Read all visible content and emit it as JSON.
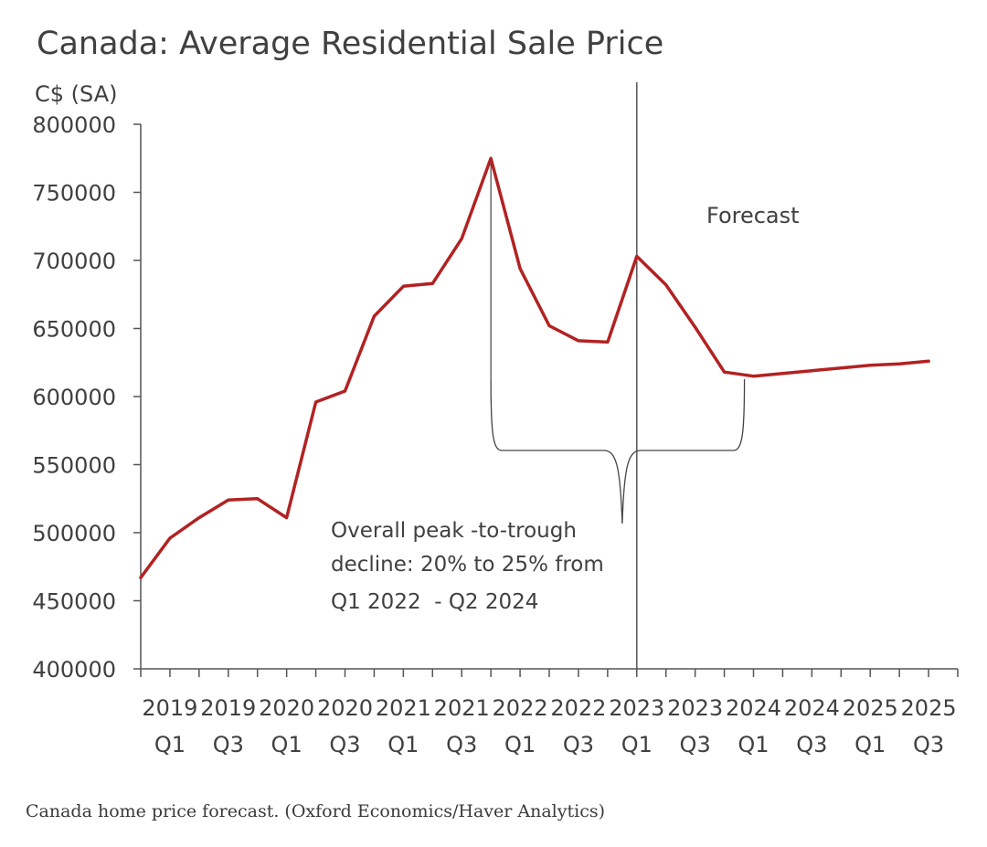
{
  "chart_data": {
    "type": "line",
    "title": "Canada: Average Residential Sale Price",
    "ylabel": "C$ (SA)",
    "xlabel": "",
    "ylim": [
      400000,
      800000
    ],
    "yticks": [
      400000,
      450000,
      500000,
      550000,
      600000,
      650000,
      700000,
      750000,
      800000
    ],
    "grid": false,
    "x_tick_labels": [
      [
        "2019",
        "Q1"
      ],
      [
        "2019",
        "Q3"
      ],
      [
        "2020",
        "Q1"
      ],
      [
        "2020",
        "Q3"
      ],
      [
        "2021",
        "Q1"
      ],
      [
        "2021",
        "Q3"
      ],
      [
        "2022",
        "Q1"
      ],
      [
        "2022",
        "Q3"
      ],
      [
        "2023",
        "Q1"
      ],
      [
        "2023",
        "Q3"
      ],
      [
        "2024",
        "Q1"
      ],
      [
        "2024",
        "Q3"
      ],
      [
        "2025",
        "Q1"
      ],
      [
        "2025",
        "Q3"
      ]
    ],
    "series": [
      {
        "color": "#b22222",
        "values": [
          467000,
          496000,
          511000,
          524000,
          525000,
          511000,
          596000,
          604000,
          659000,
          681000,
          683000,
          716000,
          775000,
          694000,
          652000,
          641000,
          640000,
          703000,
          682000,
          651000,
          618000,
          615000,
          617000,
          619000,
          621000,
          623000,
          624000,
          626000
        ]
      }
    ],
    "forecast_start_quarter_index": 17,
    "annotations": {
      "forecast_label": "Forecast",
      "decline_lines": [
        "Overall peak -to-trough",
        "decline: 20% to 25% from",
        "Q1 2022  - Q2 2024"
      ]
    }
  },
  "caption": "Canada home price forecast. (Oxford Economics/Haver Analytics)"
}
